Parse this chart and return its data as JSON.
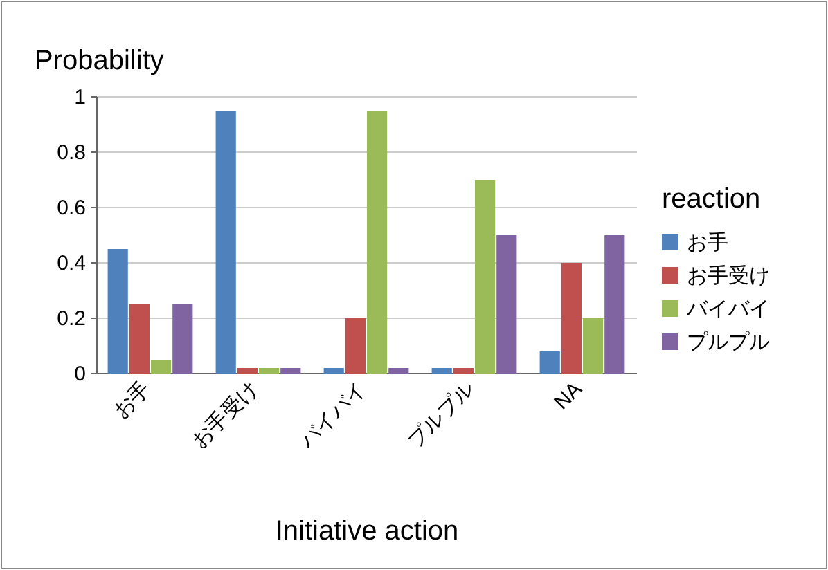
{
  "chart_data": {
    "type": "bar",
    "ylabel": "Probability",
    "xlabel": "Initiative action",
    "legend_title": "reaction",
    "categories": [
      "お手",
      "お手受け",
      "バイバイ",
      "プルプル",
      "NA"
    ],
    "series": [
      {
        "name": "お手",
        "color": "#4f81bd",
        "values": [
          0.45,
          0.95,
          0.02,
          0.02,
          0.08
        ]
      },
      {
        "name": "お手受け",
        "color": "#c0504d",
        "values": [
          0.25,
          0.02,
          0.2,
          0.02,
          0.4
        ]
      },
      {
        "name": "バイバイ",
        "color": "#9bbb59",
        "values": [
          0.05,
          0.02,
          0.95,
          0.7,
          0.2
        ]
      },
      {
        "name": "プルプル",
        "color": "#8064a2",
        "values": [
          0.25,
          0.02,
          0.02,
          0.5,
          0.5
        ]
      }
    ],
    "ylim": [
      0,
      1
    ],
    "yticks": [
      0,
      0.2,
      0.4,
      0.6,
      0.8,
      1
    ],
    "grid": "y",
    "legend": "right"
  }
}
